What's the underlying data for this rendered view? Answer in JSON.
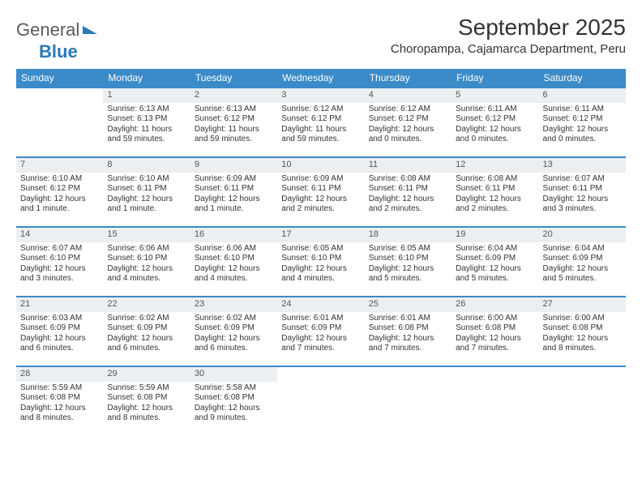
{
  "logo": {
    "text1": "General",
    "text2": "Blue"
  },
  "title": "September 2025",
  "location": "Choropampa, Cajamarca Department, Peru",
  "header_bg": "#3b8bc8",
  "days": [
    "Sunday",
    "Monday",
    "Tuesday",
    "Wednesday",
    "Thursday",
    "Friday",
    "Saturday"
  ],
  "weeks": [
    [
      null,
      {
        "n": "1",
        "sr": "6:13 AM",
        "ss": "6:13 PM",
        "dl": "11 hours and 59 minutes."
      },
      {
        "n": "2",
        "sr": "6:13 AM",
        "ss": "6:12 PM",
        "dl": "11 hours and 59 minutes."
      },
      {
        "n": "3",
        "sr": "6:12 AM",
        "ss": "6:12 PM",
        "dl": "11 hours and 59 minutes."
      },
      {
        "n": "4",
        "sr": "6:12 AM",
        "ss": "6:12 PM",
        "dl": "12 hours and 0 minutes."
      },
      {
        "n": "5",
        "sr": "6:11 AM",
        "ss": "6:12 PM",
        "dl": "12 hours and 0 minutes."
      },
      {
        "n": "6",
        "sr": "6:11 AM",
        "ss": "6:12 PM",
        "dl": "12 hours and 0 minutes."
      }
    ],
    [
      {
        "n": "7",
        "sr": "6:10 AM",
        "ss": "6:12 PM",
        "dl": "12 hours and 1 minute."
      },
      {
        "n": "8",
        "sr": "6:10 AM",
        "ss": "6:11 PM",
        "dl": "12 hours and 1 minute."
      },
      {
        "n": "9",
        "sr": "6:09 AM",
        "ss": "6:11 PM",
        "dl": "12 hours and 1 minute."
      },
      {
        "n": "10",
        "sr": "6:09 AM",
        "ss": "6:11 PM",
        "dl": "12 hours and 2 minutes."
      },
      {
        "n": "11",
        "sr": "6:08 AM",
        "ss": "6:11 PM",
        "dl": "12 hours and 2 minutes."
      },
      {
        "n": "12",
        "sr": "6:08 AM",
        "ss": "6:11 PM",
        "dl": "12 hours and 2 minutes."
      },
      {
        "n": "13",
        "sr": "6:07 AM",
        "ss": "6:11 PM",
        "dl": "12 hours and 3 minutes."
      }
    ],
    [
      {
        "n": "14",
        "sr": "6:07 AM",
        "ss": "6:10 PM",
        "dl": "12 hours and 3 minutes."
      },
      {
        "n": "15",
        "sr": "6:06 AM",
        "ss": "6:10 PM",
        "dl": "12 hours and 4 minutes."
      },
      {
        "n": "16",
        "sr": "6:06 AM",
        "ss": "6:10 PM",
        "dl": "12 hours and 4 minutes."
      },
      {
        "n": "17",
        "sr": "6:05 AM",
        "ss": "6:10 PM",
        "dl": "12 hours and 4 minutes."
      },
      {
        "n": "18",
        "sr": "6:05 AM",
        "ss": "6:10 PM",
        "dl": "12 hours and 5 minutes."
      },
      {
        "n": "19",
        "sr": "6:04 AM",
        "ss": "6:09 PM",
        "dl": "12 hours and 5 minutes."
      },
      {
        "n": "20",
        "sr": "6:04 AM",
        "ss": "6:09 PM",
        "dl": "12 hours and 5 minutes."
      }
    ],
    [
      {
        "n": "21",
        "sr": "6:03 AM",
        "ss": "6:09 PM",
        "dl": "12 hours and 6 minutes."
      },
      {
        "n": "22",
        "sr": "6:02 AM",
        "ss": "6:09 PM",
        "dl": "12 hours and 6 minutes."
      },
      {
        "n": "23",
        "sr": "6:02 AM",
        "ss": "6:09 PM",
        "dl": "12 hours and 6 minutes."
      },
      {
        "n": "24",
        "sr": "6:01 AM",
        "ss": "6:09 PM",
        "dl": "12 hours and 7 minutes."
      },
      {
        "n": "25",
        "sr": "6:01 AM",
        "ss": "6:08 PM",
        "dl": "12 hours and 7 minutes."
      },
      {
        "n": "26",
        "sr": "6:00 AM",
        "ss": "6:08 PM",
        "dl": "12 hours and 7 minutes."
      },
      {
        "n": "27",
        "sr": "6:00 AM",
        "ss": "6:08 PM",
        "dl": "12 hours and 8 minutes."
      }
    ],
    [
      {
        "n": "28",
        "sr": "5:59 AM",
        "ss": "6:08 PM",
        "dl": "12 hours and 8 minutes."
      },
      {
        "n": "29",
        "sr": "5:59 AM",
        "ss": "6:08 PM",
        "dl": "12 hours and 8 minutes."
      },
      {
        "n": "30",
        "sr": "5:58 AM",
        "ss": "6:08 PM",
        "dl": "12 hours and 9 minutes."
      },
      null,
      null,
      null,
      null
    ]
  ],
  "labels": {
    "sunrise": "Sunrise:",
    "sunset": "Sunset:",
    "daylight": "Daylight:"
  }
}
